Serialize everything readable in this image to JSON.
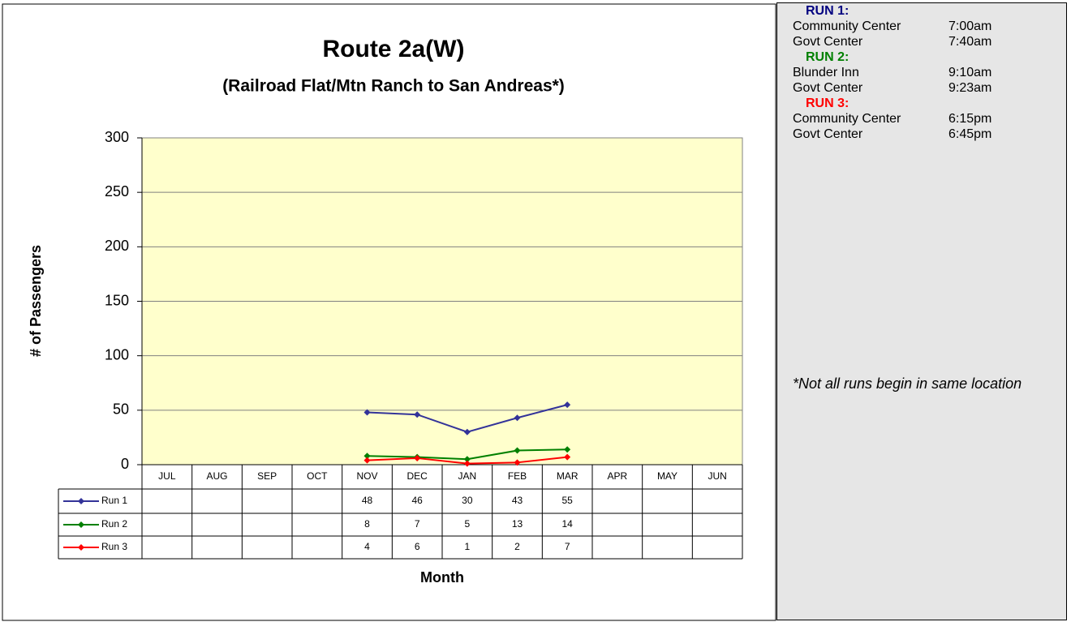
{
  "chart_data": {
    "type": "line",
    "title": "Route 2a(W)",
    "subtitle": "(Railroad Flat/Mtn Ranch to San Andreas*)",
    "y_label": "# of Passengers",
    "x_label": "Month",
    "categories": [
      "JUL",
      "AUG",
      "SEP",
      "OCT",
      "NOV",
      "DEC",
      "JAN",
      "FEB",
      "MAR",
      "APR",
      "MAY",
      "JUN"
    ],
    "series": [
      {
        "name": "Run 1",
        "color": "#333399",
        "values": [
          null,
          null,
          null,
          null,
          48,
          46,
          30,
          43,
          55,
          null,
          null,
          null
        ]
      },
      {
        "name": "Run 2",
        "color": "#008000",
        "values": [
          null,
          null,
          null,
          null,
          8,
          7,
          5,
          13,
          14,
          null,
          null,
          null
        ]
      },
      {
        "name": "Run 3",
        "color": "#ff0000",
        "values": [
          null,
          null,
          null,
          null,
          4,
          6,
          1,
          2,
          7,
          null,
          null,
          null
        ]
      }
    ],
    "ylim": [
      0,
      300
    ],
    "yticks": [
      0,
      50,
      100,
      150,
      200,
      250,
      300
    ],
    "grid": true,
    "plot_background": "#ffffcc"
  },
  "panel": {
    "runs": [
      {
        "title": "RUN 1:",
        "color": "#000080",
        "stops": [
          {
            "name": "Community Center",
            "time": "7:00am"
          },
          {
            "name": "Govt Center",
            "time": "7:40am"
          }
        ]
      },
      {
        "title": "RUN 2:",
        "color": "#008000",
        "stops": [
          {
            "name": "Blunder Inn",
            "time": "9:10am"
          },
          {
            "name": "Govt Center",
            "time": "9:23am"
          }
        ]
      },
      {
        "title": "RUN 3:",
        "color": "#ff0000",
        "stops": [
          {
            "name": "Community Center",
            "time": "6:15pm"
          },
          {
            "name": "Govt Center",
            "time": "6:45pm"
          }
        ]
      }
    ],
    "note": "*Not all runs begin in same location"
  }
}
